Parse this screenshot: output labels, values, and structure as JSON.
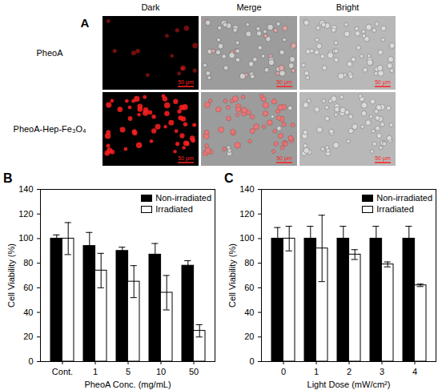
{
  "figure_a": {
    "panel_label": "A",
    "columns": [
      "Dark",
      "Merge",
      "Bright"
    ],
    "rows": [
      "PheoA",
      "PheoA-Hep-Fe₃O₄"
    ],
    "scale_bar": "50 μm"
  },
  "chart_data": [
    {
      "panel_label": "B",
      "type": "bar",
      "x_label": "PheoA Conc. (mg/mL)",
      "y_label": "Cell Viability (%)",
      "categories": [
        "Cont.",
        "1",
        "5",
        "10",
        "50"
      ],
      "series": [
        {
          "name": "Non-irradiated",
          "color": "#000000",
          "values": [
            100,
            94,
            90,
            87,
            78
          ],
          "errors": [
            3,
            11,
            3,
            9,
            4
          ]
        },
        {
          "name": "Irradiated",
          "color": "#ffffff",
          "values": [
            100,
            74,
            65,
            56,
            25
          ],
          "errors": [
            13,
            14,
            13,
            14,
            5
          ]
        }
      ],
      "ylim": [
        0,
        140
      ],
      "yticks": [
        0,
        20,
        40,
        60,
        80,
        100,
        120,
        140
      ],
      "legend": "top-right"
    },
    {
      "panel_label": "C",
      "type": "bar",
      "x_label": "Light Dose (mW/cm²)",
      "y_label": "Cell Viability (%)",
      "categories": [
        "0",
        "1",
        "2",
        "3",
        "4"
      ],
      "series": [
        {
          "name": "Non-irradiated",
          "color": "#000000",
          "values": [
            100,
            100,
            100,
            100,
            100
          ],
          "errors": [
            9,
            10,
            10,
            10,
            10
          ]
        },
        {
          "name": "Irradiated",
          "color": "#ffffff",
          "values": [
            100,
            92,
            87,
            79,
            62
          ],
          "errors": [
            10,
            27,
            4,
            2,
            1
          ]
        }
      ],
      "ylim": [
        0,
        140
      ],
      "yticks": [
        0,
        20,
        40,
        60,
        80,
        100,
        120,
        140
      ],
      "legend": "top-right"
    }
  ]
}
